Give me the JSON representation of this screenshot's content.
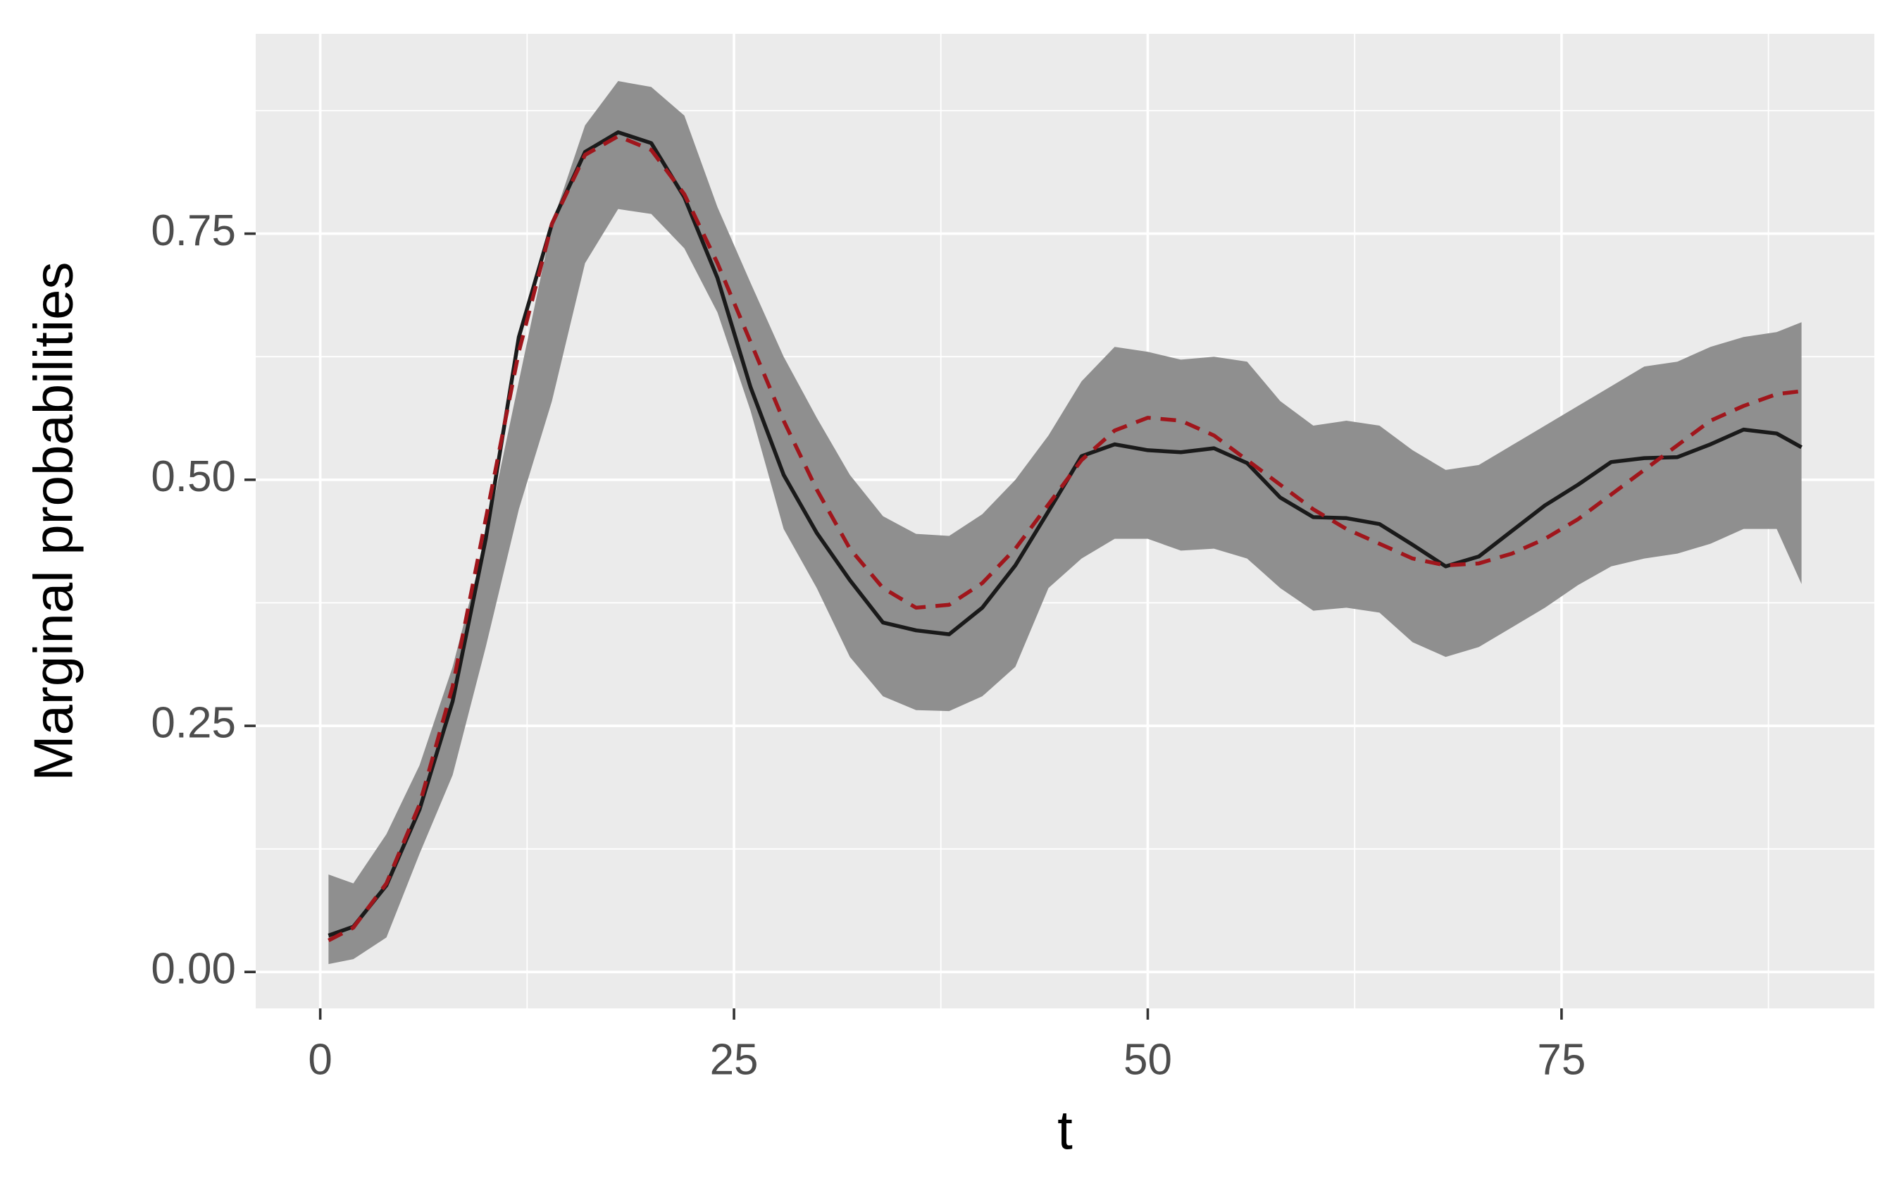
{
  "chart_data": {
    "type": "line",
    "xlabel": "t",
    "ylabel": "Marginal probabilities",
    "x": [
      0.5,
      2,
      4,
      6,
      8,
      10,
      12,
      14,
      16,
      18,
      20,
      22,
      24,
      26,
      28,
      30,
      32,
      34,
      36,
      38,
      40,
      42,
      44,
      46,
      48,
      50,
      52,
      54,
      56,
      58,
      60,
      62,
      64,
      66,
      68,
      70,
      72,
      74,
      76,
      78,
      80,
      82,
      84,
      86,
      88,
      89.5
    ],
    "series": [
      {
        "color": "#1a1a1a",
        "dashed": false,
        "values": [
          0.037,
          0.046,
          0.088,
          0.165,
          0.275,
          0.44,
          0.645,
          0.76,
          0.833,
          0.853,
          0.842,
          0.787,
          0.705,
          0.594,
          0.505,
          0.446,
          0.398,
          0.355,
          0.347,
          0.343,
          0.37,
          0.413,
          0.468,
          0.524,
          0.536,
          0.53,
          0.528,
          0.532,
          0.517,
          0.482,
          0.462,
          0.461,
          0.455,
          0.434,
          0.412,
          0.422,
          0.448,
          0.474,
          0.495,
          0.518,
          0.522,
          0.523,
          0.536,
          0.551,
          0.547,
          0.533
        ]
      },
      {
        "color": "#a0161c",
        "dashed": true,
        "values": [
          0.032,
          0.045,
          0.09,
          0.17,
          0.29,
          0.46,
          0.63,
          0.76,
          0.83,
          0.849,
          0.835,
          0.79,
          0.72,
          0.64,
          0.56,
          0.49,
          0.43,
          0.39,
          0.37,
          0.373,
          0.395,
          0.43,
          0.475,
          0.52,
          0.55,
          0.563,
          0.56,
          0.545,
          0.52,
          0.495,
          0.47,
          0.45,
          0.435,
          0.42,
          0.413,
          0.415,
          0.425,
          0.44,
          0.46,
          0.485,
          0.51,
          0.535,
          0.56,
          0.575,
          0.587,
          0.59
        ]
      }
    ],
    "band": {
      "color": "#8f8f8f",
      "upper": [
        0.099,
        0.09,
        0.14,
        0.21,
        0.31,
        0.44,
        0.6,
        0.76,
        0.86,
        0.905,
        0.899,
        0.87,
        0.777,
        0.7,
        0.625,
        0.563,
        0.505,
        0.463,
        0.445,
        0.443,
        0.465,
        0.5,
        0.545,
        0.6,
        0.635,
        0.63,
        0.622,
        0.625,
        0.62,
        0.58,
        0.555,
        0.56,
        0.555,
        0.53,
        0.51,
        0.515,
        0.535,
        0.555,
        0.575,
        0.595,
        0.615,
        0.62,
        0.635,
        0.645,
        0.65,
        0.66
      ],
      "lower": [
        0.008,
        0.013,
        0.035,
        0.12,
        0.2,
        0.33,
        0.47,
        0.58,
        0.72,
        0.775,
        0.77,
        0.735,
        0.67,
        0.57,
        0.45,
        0.39,
        0.32,
        0.28,
        0.266,
        0.265,
        0.28,
        0.31,
        0.39,
        0.42,
        0.44,
        0.44,
        0.428,
        0.43,
        0.42,
        0.39,
        0.367,
        0.37,
        0.365,
        0.335,
        0.32,
        0.33,
        0.35,
        0.37,
        0.393,
        0.412,
        0.42,
        0.425,
        0.435,
        0.45,
        0.45,
        0.394
      ]
    },
    "xlim": [
      -3.9,
      93.9
    ],
    "ylim": [
      -0.037,
      0.953
    ],
    "xticks": [
      0,
      25,
      50,
      75
    ],
    "yticks": [
      {
        "value": 0,
        "label": "0.00"
      },
      {
        "value": 0.25,
        "label": "0.25"
      },
      {
        "value": 0.5,
        "label": "0.50"
      },
      {
        "value": 0.75,
        "label": "0.75"
      }
    ],
    "xminor": [
      12.5,
      37.5,
      62.5,
      87.5
    ],
    "yminor": [
      0.125,
      0.375,
      0.625,
      0.875
    ],
    "grid": true
  }
}
